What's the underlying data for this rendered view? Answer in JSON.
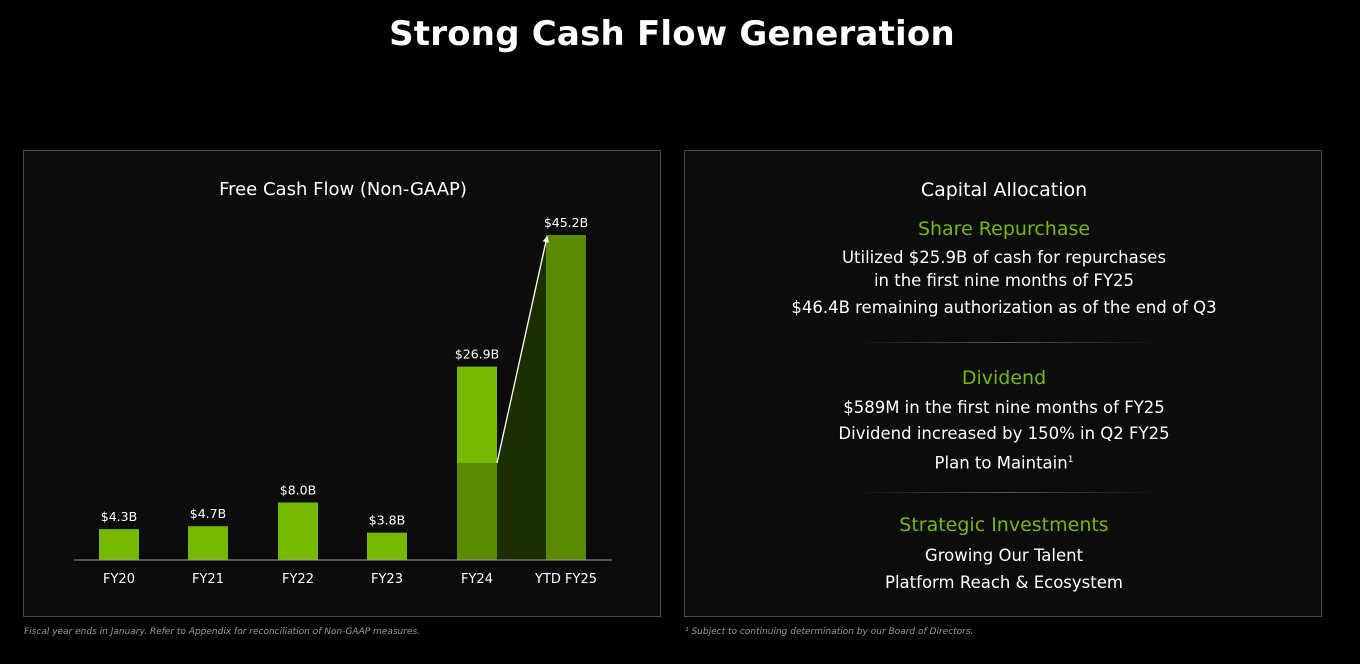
{
  "page": {
    "title": "Strong Cash Flow Generation"
  },
  "chart_data": {
    "type": "bar",
    "title": "Free Cash Flow (Non-GAAP)",
    "categories": [
      "FY20",
      "FY21",
      "FY22",
      "FY23",
      "FY24",
      "YTD FY25"
    ],
    "values": [
      4.3,
      4.7,
      8.0,
      3.8,
      26.9,
      45.2
    ],
    "labels": [
      "$4.3B",
      "$4.7B",
      "$8.0B",
      "$3.8B",
      "$26.9B",
      "$45.2B"
    ],
    "fy24_comparable_segment": 13.5,
    "ylim": [
      0,
      45.2
    ],
    "xlabel": "",
    "ylabel": "",
    "grid": false,
    "annotation": "arrow from FY24 comparable period to YTD FY25",
    "colors": {
      "bar": "#76b900",
      "bar_dark": "#5a8a00",
      "band": "#1d3300"
    }
  },
  "capital_allocation": {
    "title": "Capital Allocation",
    "share_repurchase": {
      "heading": "Share Repurchase",
      "line1": "Utilized $25.9B of cash for repurchases",
      "line2": "in the first nine months of FY25",
      "line3": "$46.4B remaining authorization as of the end of Q3"
    },
    "dividend": {
      "heading": "Dividend",
      "line1": "$589M in the first nine months of FY25",
      "line2": "Dividend increased by 150% in Q2 FY25",
      "line3": "Plan to Maintain",
      "footnote_marker": "1"
    },
    "strategic_investments": {
      "heading": "Strategic Investments",
      "line1": "Growing Our Talent",
      "line2": "Platform Reach & Ecosystem"
    }
  },
  "footnotes": {
    "left": "Fiscal year ends in January. Refer to Appendix for reconciliation of Non-GAAP measures.",
    "right": "¹ Subject to continuing determination by our Board of Directors."
  }
}
